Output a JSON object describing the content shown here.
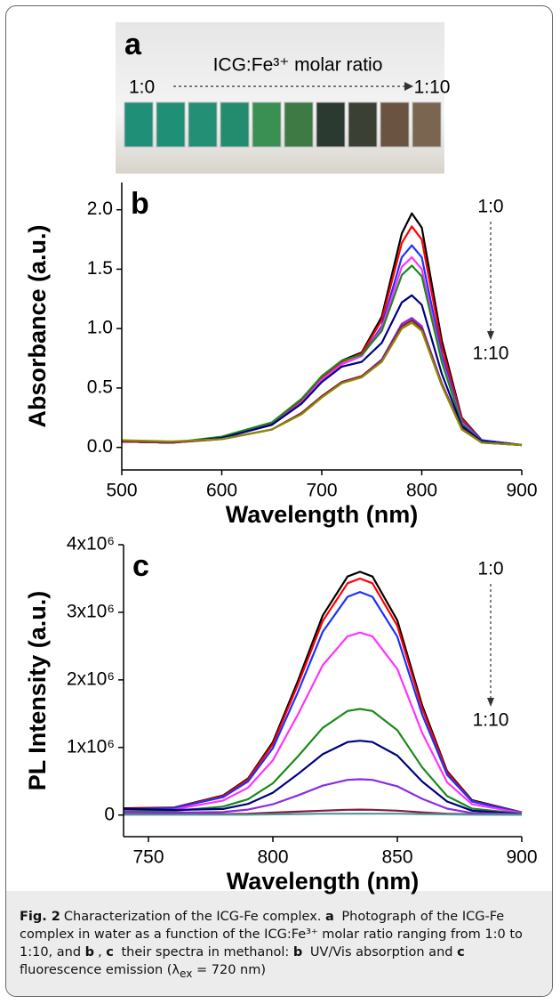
{
  "panel_a": {
    "panel_label": "a",
    "title": "ICG:Fe³⁺ molar ratio",
    "arrow_start": "1:0",
    "arrow_end": "1:10"
  },
  "chart_data": [
    {
      "type": "line",
      "panel_label": "b",
      "arrow_start": "1:0",
      "arrow_end": "1:10",
      "xlabel": "Wavelength (nm)",
      "ylabel": "Absorbance (a.u.)",
      "x": [
        500,
        550,
        600,
        650,
        680,
        700,
        720,
        740,
        760,
        780,
        790,
        800,
        820,
        840,
        860,
        900
      ],
      "xlim": [
        500,
        900
      ],
      "xticks": [
        500,
        600,
        700,
        800,
        900
      ],
      "ylim": [
        -0.19,
        2.23
      ],
      "yticks": [
        {
          "value": 0,
          "label": "0.0"
        },
        0.5,
        {
          "value": 1,
          "label": "1.0"
        },
        1.5,
        {
          "value": 2,
          "label": "2.0"
        }
      ],
      "series": [
        {
          "color": "#000000",
          "values": [
            0.05,
            0.04,
            0.08,
            0.2,
            0.4,
            0.6,
            0.73,
            0.8,
            1.1,
            1.8,
            1.97,
            1.85,
            0.9,
            0.25,
            0.06,
            0.02
          ]
        },
        {
          "color": "#ff0000",
          "values": [
            0.05,
            0.04,
            0.08,
            0.2,
            0.39,
            0.59,
            0.72,
            0.79,
            1.07,
            1.72,
            1.86,
            1.75,
            0.85,
            0.24,
            0.06,
            0.02
          ]
        },
        {
          "color": "#1a33ff",
          "values": [
            0.05,
            0.04,
            0.08,
            0.19,
            0.38,
            0.57,
            0.7,
            0.77,
            1.02,
            1.6,
            1.7,
            1.6,
            0.78,
            0.22,
            0.06,
            0.02
          ]
        },
        {
          "color": "#ff33ff",
          "values": [
            0.05,
            0.04,
            0.08,
            0.19,
            0.38,
            0.57,
            0.7,
            0.77,
            1.0,
            1.52,
            1.6,
            1.5,
            0.74,
            0.21,
            0.05,
            0.02
          ]
        },
        {
          "color": "#1a8a1a",
          "values": [
            0.05,
            0.04,
            0.09,
            0.21,
            0.41,
            0.6,
            0.73,
            0.78,
            0.98,
            1.45,
            1.53,
            1.44,
            0.72,
            0.2,
            0.05,
            0.02
          ]
        },
        {
          "color": "#000080",
          "values": [
            0.05,
            0.04,
            0.08,
            0.19,
            0.37,
            0.55,
            0.68,
            0.72,
            0.88,
            1.22,
            1.28,
            1.2,
            0.62,
            0.18,
            0.05,
            0.02
          ]
        },
        {
          "color": "#8a2be2",
          "values": [
            0.05,
            0.04,
            0.07,
            0.15,
            0.29,
            0.43,
            0.55,
            0.6,
            0.74,
            1.04,
            1.09,
            1.02,
            0.54,
            0.16,
            0.04,
            0.02
          ]
        },
        {
          "color": "#8b1a3a",
          "values": [
            0.05,
            0.04,
            0.07,
            0.15,
            0.29,
            0.43,
            0.55,
            0.6,
            0.73,
            1.02,
            1.07,
            1.0,
            0.53,
            0.16,
            0.04,
            0.02
          ]
        },
        {
          "color": "#8b8b00",
          "values": [
            0.06,
            0.05,
            0.07,
            0.15,
            0.28,
            0.42,
            0.54,
            0.59,
            0.72,
            1.0,
            1.05,
            0.98,
            0.52,
            0.15,
            0.04,
            0.02
          ]
        }
      ]
    },
    {
      "type": "line",
      "panel_label": "c",
      "arrow_start": "1:0",
      "arrow_end": "1:10",
      "xlabel": "Wavelength (nm)",
      "ylabel": "PL Intensity (a.u.)",
      "x": [
        740,
        760,
        780,
        790,
        800,
        810,
        820,
        830,
        835,
        840,
        850,
        860,
        870,
        880,
        900
      ],
      "xlim": [
        740,
        900
      ],
      "xticks": [
        750,
        800,
        850,
        900
      ],
      "ylim": [
        -320000,
        4000000
      ],
      "yticks": [
        0,
        {
          "value": 1000000,
          "label": "1x10⁶"
        },
        {
          "value": 2000000,
          "label": "2x10⁶"
        },
        {
          "value": 3000000,
          "label": "3x10⁶"
        },
        {
          "value": 4000000,
          "label": "4x10⁶"
        }
      ],
      "series": [
        {
          "color": "#000000",
          "values": [
            100000,
            110000,
            290000,
            540000,
            1080000,
            1980000,
            2950000,
            3530000,
            3600000,
            3530000,
            2880000,
            1620000,
            650000,
            220000,
            40000
          ]
        },
        {
          "color": "#ff0000",
          "values": [
            90000,
            105000,
            280000,
            525000,
            1050000,
            1925000,
            2870000,
            3430000,
            3500000,
            3430000,
            2800000,
            1575000,
            630000,
            210000,
            35000
          ]
        },
        {
          "color": "#1a33ff",
          "values": [
            80000,
            100000,
            265000,
            495000,
            990000,
            1815000,
            2710000,
            3230000,
            3300000,
            3230000,
            2640000,
            1485000,
            595000,
            200000,
            35000
          ]
        },
        {
          "color": "#ff33ff",
          "values": [
            60000,
            80000,
            215000,
            405000,
            810000,
            1485000,
            2215000,
            2645000,
            2700000,
            2645000,
            2160000,
            1215000,
            485000,
            160000,
            30000
          ]
        },
        {
          "color": "#1a8a1a",
          "values": [
            50000,
            60000,
            125000,
            235000,
            470000,
            865000,
            1290000,
            1540000,
            1570000,
            1540000,
            1255000,
            705000,
            280000,
            95000,
            20000
          ]
        },
        {
          "color": "#000080",
          "values": [
            90000,
            75000,
            90000,
            165000,
            330000,
            605000,
            900000,
            1080000,
            1100000,
            1080000,
            880000,
            495000,
            200000,
            65000,
            15000
          ]
        },
        {
          "color": "#8a2be2",
          "values": [
            40000,
            35000,
            45000,
            80000,
            160000,
            290000,
            435000,
            520000,
            530000,
            520000,
            425000,
            240000,
            95000,
            30000,
            10000
          ]
        },
        {
          "color": "#8b1a3a",
          "values": [
            10000,
            10000,
            15000,
            20000,
            35000,
            50000,
            65000,
            78000,
            80000,
            78000,
            65000,
            40000,
            20000,
            10000,
            5000
          ]
        },
        {
          "color": "#4a9a9a",
          "values": [
            5000,
            5000,
            5000,
            5000,
            10000,
            15000,
            20000,
            20000,
            20000,
            20000,
            20000,
            15000,
            10000,
            5000,
            5000
          ]
        }
      ]
    }
  ],
  "caption": [
    {
      "text": "Fig. 2",
      "bold": true
    },
    {
      "text": "Characterization of the ICG-Fe complex. "
    },
    {
      "text": "a",
      "bold": true
    },
    {
      "text": " Photograph of the ICG-Fe complex in water as a function of the ICG:Fe³⁺ molar ratio ranging from 1:0 to 1:10, and "
    },
    {
      "text": "b",
      "bold": true
    },
    {
      "text": ", "
    },
    {
      "text": "c",
      "bold": true
    },
    {
      "text": " their spectra in methanol: "
    },
    {
      "text": "b",
      "bold": true
    },
    {
      "text": " UV/Vis absorption and "
    },
    {
      "text": "c",
      "bold": true
    },
    {
      "text": " fluorescence emission (λ"
    },
    {
      "text": "ex",
      "sub": true
    },
    {
      "text": " = 720 nm)"
    }
  ]
}
